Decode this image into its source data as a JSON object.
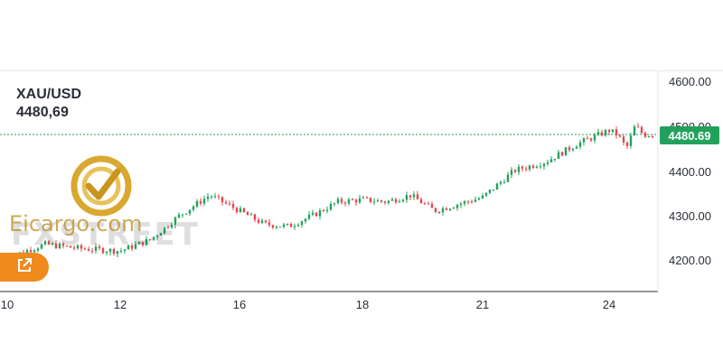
{
  "header": {
    "symbol": "XAU/USD",
    "price": "4480,69"
  },
  "watermark": {
    "site_text": "Eicargo.com",
    "fx_text": "FXSTREET"
  },
  "last_price_tag": "4480.69",
  "colors": {
    "up": "#22a15d",
    "down": "#e5474f",
    "accent": "#ef8a1d"
  },
  "icons": {
    "external_link": "external-link-icon",
    "logo": "logo-badge"
  },
  "chart_data": {
    "type": "candlestick",
    "x_ticks": [
      "10",
      "12",
      "16",
      "18",
      "21",
      "24"
    ],
    "y_ticks": [
      "4600.00",
      "4500.00",
      "4400.00",
      "4300.00",
      "4200.00"
    ],
    "ylim": [
      4160,
      4620
    ],
    "last_price": 4480.69,
    "grid": false,
    "series": [
      {
        "close_path": [
          [
            "10",
            4205
          ],
          [
            "10",
            4235
          ],
          [
            "10",
            4225
          ],
          [
            "12",
            4220
          ],
          [
            "12",
            4245
          ],
          [
            "12",
            4300
          ],
          [
            "12",
            4345
          ],
          [
            "16",
            4310
          ],
          [
            "16",
            4280
          ],
          [
            "16",
            4275
          ],
          [
            "16",
            4300
          ],
          [
            "16",
            4330
          ],
          [
            "18",
            4335
          ],
          [
            "18",
            4330
          ],
          [
            "18",
            4345
          ],
          [
            "18",
            4310
          ],
          [
            "18",
            4325
          ],
          [
            "21",
            4340
          ],
          [
            "21",
            4400
          ],
          [
            "21",
            4420
          ],
          [
            "21",
            4460
          ],
          [
            "24",
            4490
          ],
          [
            "24",
            4480
          ],
          [
            "24",
            4450
          ],
          [
            "24",
            4500
          ],
          [
            "24",
            4480
          ]
        ]
      }
    ]
  }
}
